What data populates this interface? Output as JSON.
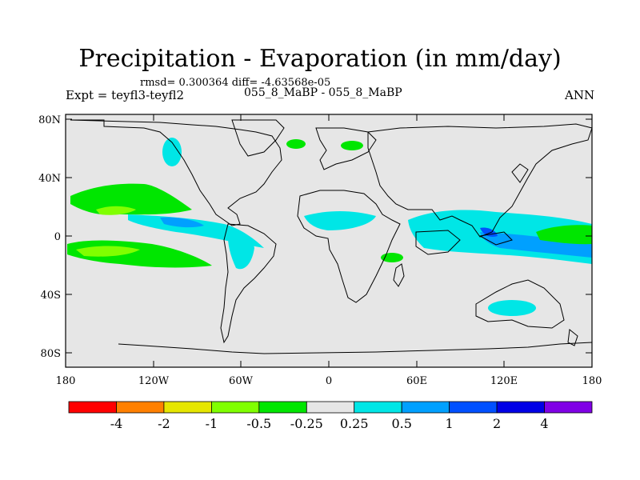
{
  "title": "Precipitation - Evaporation (in mm/day)",
  "stats": "rmsd= 0.300364 diff= -4.63568e-05",
  "expt_label": "Expt = teyfl3-teyfl2",
  "subtitle": "055_8_MaBP - 055_8_MaBP",
  "season": "ANN",
  "y_ticks": [
    "80N",
    "40N",
    "0",
    "40S",
    "80S"
  ],
  "x_ticks": [
    "180",
    "120W",
    "60W",
    "0",
    "60E",
    "120E",
    "180"
  ],
  "colorbar": {
    "colors": [
      "#ff0000",
      "#ff8000",
      "#e6e600",
      "#80ff00",
      "#00e600",
      "#e6e6e6",
      "#00e6e6",
      "#00a0ff",
      "#0050ff",
      "#0000e6",
      "#8000e6"
    ],
    "labels": [
      "-4",
      "-2",
      "-1",
      "-0.5",
      "-0.25",
      "0.25",
      "0.5",
      "1",
      "2",
      "4"
    ]
  },
  "colors": {
    "ocean_background": "#e6e6e6",
    "coastline": "#000000"
  }
}
